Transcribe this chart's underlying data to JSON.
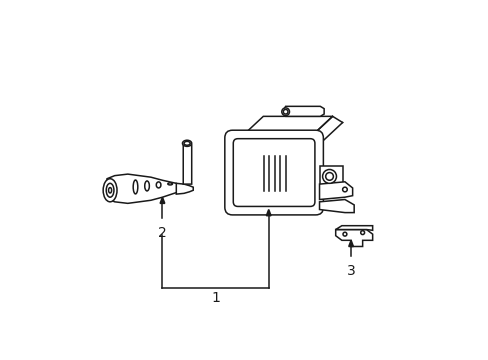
{
  "background_color": "#ffffff",
  "line_color": "#1a1a1a",
  "line_width": 1.1,
  "figsize": [
    4.89,
    3.6
  ],
  "dpi": 100,
  "label1": "1",
  "label2": "2",
  "label3": "3"
}
